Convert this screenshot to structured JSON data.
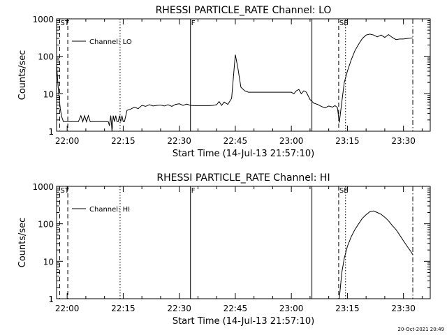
{
  "footer": {
    "timestamp": "20-Oct-2021 20:49"
  },
  "chart_data": [
    {
      "type": "line",
      "title": "RHESSI PARTICLE_RATE Channel: LO",
      "xlabel": "Start Time (14-Jul-13 21:57:10)",
      "ylabel": "Counts/sec",
      "yscale": "log",
      "ylim": [
        1,
        1000
      ],
      "xlim": [
        "21:57:10",
        "23:37:10"
      ],
      "x_ticks": [
        "22:00",
        "22:15",
        "22:30",
        "22:45",
        "23:00",
        "23:15",
        "23:30"
      ],
      "y_ticks": [
        "1",
        "10",
        "100",
        "1000"
      ],
      "legend": {
        "position": "top-left",
        "entries": [
          "Channel: LO"
        ]
      },
      "grid": false,
      "markers": [
        {
          "label": "ST",
          "time": "21:58:00",
          "style": "dashed"
        },
        {
          "label": "",
          "time": "22:00:10",
          "style": "dashed"
        },
        {
          "label": "",
          "time": "22:14:10",
          "style": "dotted"
        },
        {
          "label": "F",
          "time": "22:33:00",
          "style": "solid"
        },
        {
          "label": "",
          "time": "23:05:30",
          "style": "solid"
        },
        {
          "label": "SE",
          "time": "23:12:40",
          "style": "dashed"
        },
        {
          "label": "",
          "time": "23:14:30",
          "style": "dotted"
        },
        {
          "label": "",
          "time": "23:32:30",
          "style": "dashdot"
        }
      ],
      "series": [
        {
          "name": "Channel: LO",
          "x": [
            "21:57:10",
            "21:57:40",
            "21:58:10",
            "21:58:30",
            "21:59:00",
            "22:00:10",
            "22:03:00",
            "22:03:40",
            "22:04:10",
            "22:04:40",
            "22:05:10",
            "22:05:40",
            "22:06:10",
            "22:06:40",
            "22:07:10",
            "22:08:00",
            "22:09:00",
            "22:10:00",
            "22:11:00",
            "22:11:20",
            "22:11:40",
            "22:12:00",
            "22:12:20",
            "22:12:40",
            "22:13:00",
            "22:13:20",
            "22:13:40",
            "22:14:00",
            "22:14:20",
            "22:14:40",
            "22:15:00",
            "22:15:20",
            "22:16:00",
            "22:17:00",
            "22:18:00",
            "22:19:00",
            "22:20:00",
            "22:21:00",
            "22:22:00",
            "22:23:00",
            "22:24:00",
            "22:25:00",
            "22:26:00",
            "22:27:00",
            "22:28:00",
            "22:29:00",
            "22:30:00",
            "22:31:00",
            "22:32:00",
            "22:33:00",
            "22:34:00",
            "22:36:00",
            "22:38:00",
            "22:39:00",
            "22:40:00",
            "22:40:40",
            "22:41:20",
            "22:42:00",
            "22:43:00",
            "22:44:00",
            "22:45:00",
            "22:45:40",
            "22:46:30",
            "22:47:30",
            "22:48:30",
            "22:49:30",
            "22:51:00",
            "22:52:00",
            "22:53:00",
            "22:54:00",
            "22:55:00",
            "22:56:00",
            "22:57:00",
            "22:58:00",
            "22:59:00",
            "23:00:00",
            "23:00:40",
            "23:01:20",
            "23:02:00",
            "23:02:40",
            "23:03:20",
            "23:04:00",
            "23:05:00",
            "23:06:00",
            "23:07:00",
            "23:08:00",
            "23:09:00",
            "23:10:00",
            "23:11:00",
            "23:11:40",
            "23:12:20",
            "23:12:50",
            "23:13:30",
            "23:14:10",
            "23:15:00",
            "23:16:00",
            "23:17:00",
            "23:18:00",
            "23:19:00",
            "23:20:00",
            "23:21:00",
            "23:22:00",
            "23:23:00",
            "23:24:00",
            "23:25:00",
            "23:26:00",
            "23:27:00",
            "23:28:00",
            "23:29:00",
            "23:30:00",
            "23:31:00",
            "23:32:30"
          ],
          "values": [
            60,
            12,
            4,
            2.5,
            1.8,
            1.8,
            1.8,
            2.6,
            1.8,
            2.6,
            1.8,
            2.6,
            1.8,
            1.8,
            1.8,
            1.8,
            1.8,
            1.8,
            1.8,
            1.4,
            2.6,
            1.0,
            2.6,
            1.8,
            2.6,
            1.8,
            1.8,
            2.6,
            1.8,
            2.6,
            1.8,
            1.8,
            3.6,
            3.9,
            4.4,
            4.0,
            4.9,
            4.6,
            5.1,
            4.7,
            4.9,
            5.0,
            4.7,
            5.1,
            4.6,
            5.2,
            5.4,
            4.9,
            5.3,
            4.9,
            4.8,
            4.8,
            4.8,
            4.9,
            5.1,
            6.2,
            4.9,
            6.0,
            5.2,
            7.5,
            110,
            50,
            15,
            12,
            11,
            11,
            11,
            11,
            11,
            11,
            11,
            11,
            11,
            11,
            11,
            11,
            10,
            12,
            13,
            10,
            12,
            11,
            7,
            5.6,
            5.2,
            4.6,
            4.2,
            4.7,
            4.4,
            4.8,
            4.3,
            1.7,
            6.0,
            20,
            40,
            80,
            140,
            210,
            300,
            370,
            390,
            370,
            330,
            370,
            320,
            380,
            320,
            280,
            290,
            290,
            300,
            310
          ]
        }
      ]
    },
    {
      "type": "line",
      "title": "RHESSI PARTICLE_RATE Channel: HI",
      "xlabel": "Start Time (14-Jul-13 21:57:10)",
      "ylabel": "Counts/sec",
      "yscale": "log",
      "ylim": [
        1,
        1000
      ],
      "xlim": [
        "21:57:10",
        "23:37:10"
      ],
      "x_ticks": [
        "22:00",
        "22:15",
        "22:30",
        "22:45",
        "23:00",
        "23:15",
        "23:30"
      ],
      "y_ticks": [
        "1",
        "10",
        "100",
        "1000"
      ],
      "legend": {
        "position": "top-left",
        "entries": [
          "Channel: HI"
        ]
      },
      "grid": false,
      "markers": [
        {
          "label": "ST",
          "time": "21:58:00",
          "style": "dashed"
        },
        {
          "label": "",
          "time": "22:00:10",
          "style": "dashed"
        },
        {
          "label": "",
          "time": "22:14:10",
          "style": "dotted"
        },
        {
          "label": "F",
          "time": "22:33:00",
          "style": "solid"
        },
        {
          "label": "",
          "time": "23:05:30",
          "style": "solid"
        },
        {
          "label": "SE",
          "time": "23:12:40",
          "style": "dashed"
        },
        {
          "label": "",
          "time": "23:14:30",
          "style": "dotted"
        },
        {
          "label": "",
          "time": "23:32:30",
          "style": "dashdot"
        }
      ],
      "series": [
        {
          "name": "Channel: HI",
          "x": [
            "23:12:50",
            "23:13:30",
            "23:14:10",
            "23:15:00",
            "23:16:00",
            "23:17:00",
            "23:18:00",
            "23:19:00",
            "23:20:00",
            "23:21:00",
            "23:22:00",
            "23:23:00",
            "23:24:00",
            "23:25:00",
            "23:26:00",
            "23:27:00",
            "23:28:00",
            "23:29:00",
            "23:30:00",
            "23:31:00",
            "23:32:00",
            "23:32:30"
          ],
          "values": [
            1,
            5,
            12,
            25,
            45,
            70,
            100,
            140,
            175,
            210,
            220,
            200,
            180,
            150,
            120,
            90,
            70,
            50,
            35,
            25,
            18,
            15
          ]
        }
      ]
    }
  ]
}
